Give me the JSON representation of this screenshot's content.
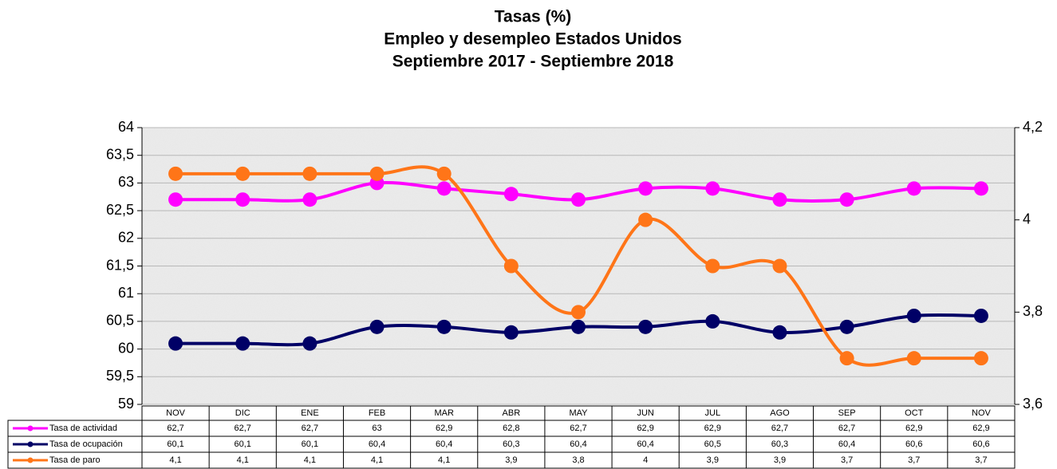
{
  "chart_data": {
    "type": "line",
    "title": [
      "Tasas (%)",
      "Empleo y desempleo Estados Unidos",
      "Septiembre 2017 - Septiembre 2018"
    ],
    "categories": [
      "NOV",
      "DIC",
      "ENE",
      "FEB",
      "MAR",
      "ABR",
      "MAY",
      "JUN",
      "JUL",
      "AGO",
      "SEP",
      "OCT",
      "NOV"
    ],
    "series": [
      {
        "name": "Tasa de actividad",
        "color": "#ff00ff",
        "axis": "y",
        "values": [
          62.7,
          62.7,
          62.7,
          63,
          62.9,
          62.8,
          62.7,
          62.9,
          62.9,
          62.7,
          62.7,
          62.9,
          62.9
        ],
        "value_labels": [
          "62,7",
          "62,7",
          "62,7",
          "63",
          "62,9",
          "62,8",
          "62,7",
          "62,9",
          "62,9",
          "62,7",
          "62,7",
          "62,9",
          "62,9"
        ]
      },
      {
        "name": "Tasa de ocupación",
        "color": "#000066",
        "axis": "y",
        "values": [
          60.1,
          60.1,
          60.1,
          60.4,
          60.4,
          60.3,
          60.4,
          60.4,
          60.5,
          60.3,
          60.4,
          60.6,
          60.6
        ],
        "value_labels": [
          "60,1",
          "60,1",
          "60,1",
          "60,4",
          "60,4",
          "60,3",
          "60,4",
          "60,4",
          "60,5",
          "60,3",
          "60,4",
          "60,6",
          "60,6"
        ]
      },
      {
        "name": "Tasa de paro",
        "color": "#ff7518",
        "axis": "y2",
        "values": [
          4.1,
          4.1,
          4.1,
          4.1,
          4.1,
          3.9,
          3.8,
          4,
          3.9,
          3.9,
          3.7,
          3.7,
          3.7
        ],
        "value_labels": [
          "4,1",
          "4,1",
          "4,1",
          "4,1",
          "4,1",
          "3,9",
          "3,8",
          "4",
          "3,9",
          "3,9",
          "3,7",
          "3,7",
          "3,7"
        ]
      }
    ],
    "ylim": [
      59,
      64
    ],
    "yticks": [
      59,
      {
        "value": 59.5,
        "label": "59,5"
      },
      60,
      {
        "value": 60.5,
        "label": "60,5"
      },
      61,
      {
        "value": 61.5,
        "label": "61,5"
      },
      62,
      {
        "value": 62.5,
        "label": "62,5"
      },
      63,
      {
        "value": 63.5,
        "label": "63,5"
      },
      64
    ],
    "y2lim": [
      3.6,
      4.2
    ],
    "y2ticks": [
      {
        "value": 3.6,
        "label": "3,6"
      },
      {
        "value": 3.8,
        "label": "3,8"
      },
      4,
      {
        "value": 4.2,
        "label": "4,2"
      }
    ],
    "grid": true
  }
}
